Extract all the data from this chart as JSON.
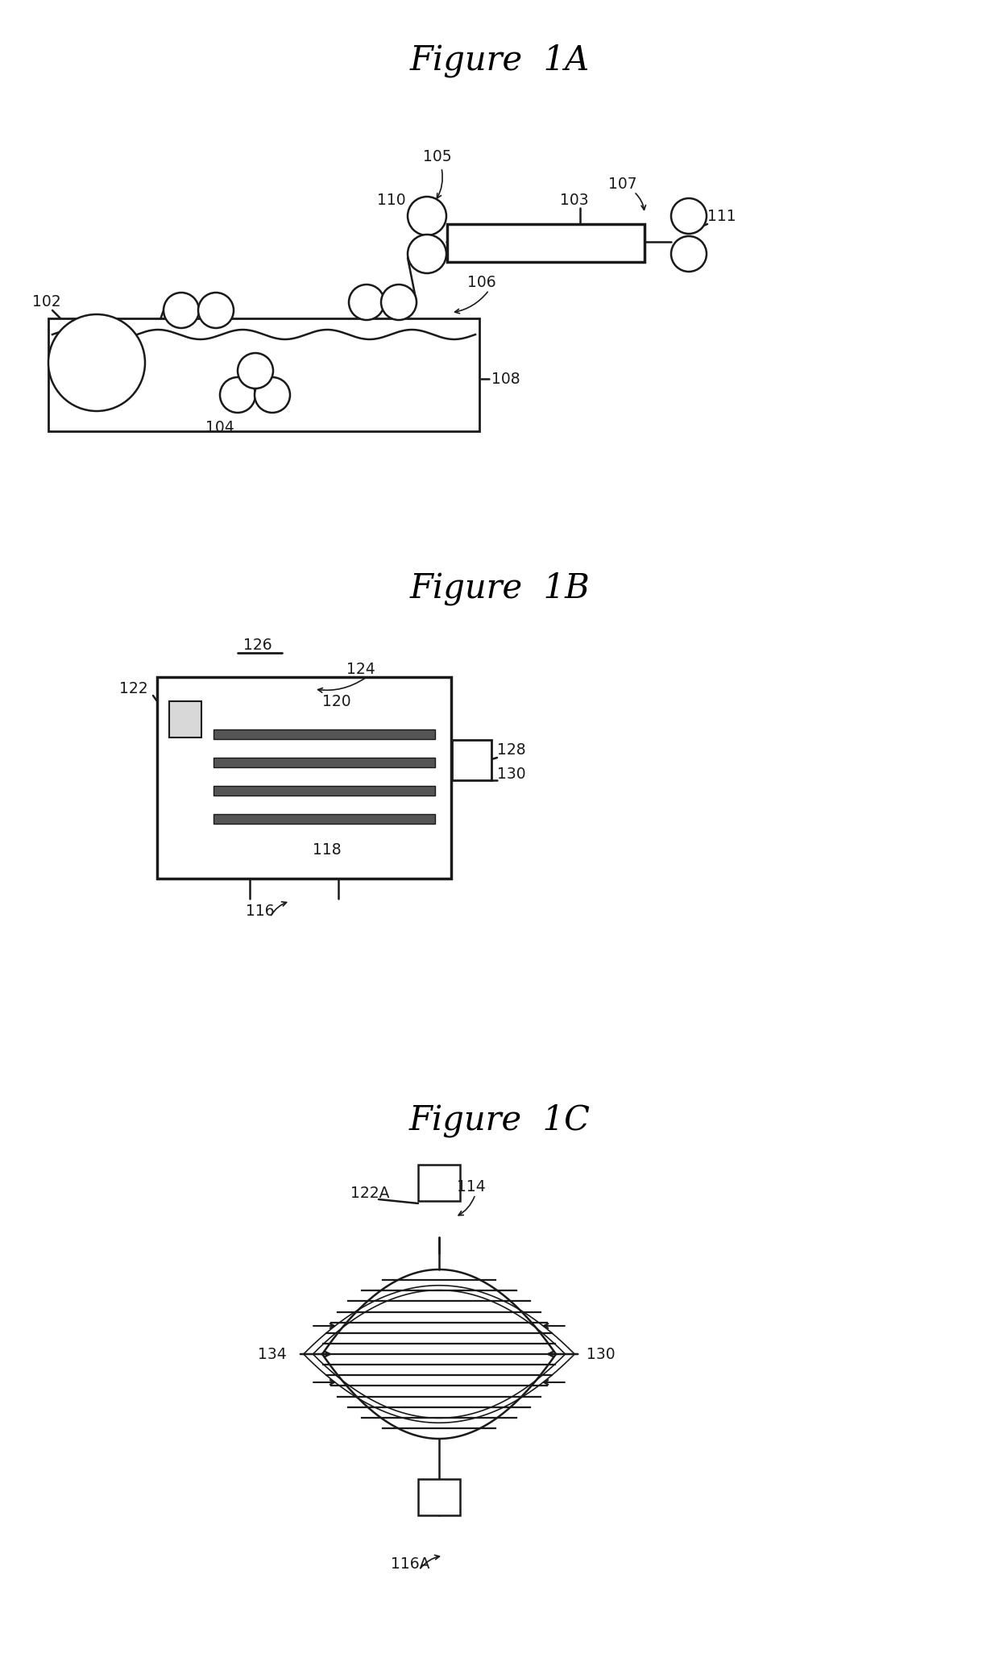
{
  "bg_color": "#ffffff",
  "line_color": "#1a1a1a",
  "fig_width": 12.4,
  "fig_height": 20.62,
  "fig1A_title": "Figure  1A",
  "fig1B_title": "Figure  1B",
  "fig1C_title": "Figure  1C",
  "title_fontsize": 30,
  "label_fontsize": 13.5
}
